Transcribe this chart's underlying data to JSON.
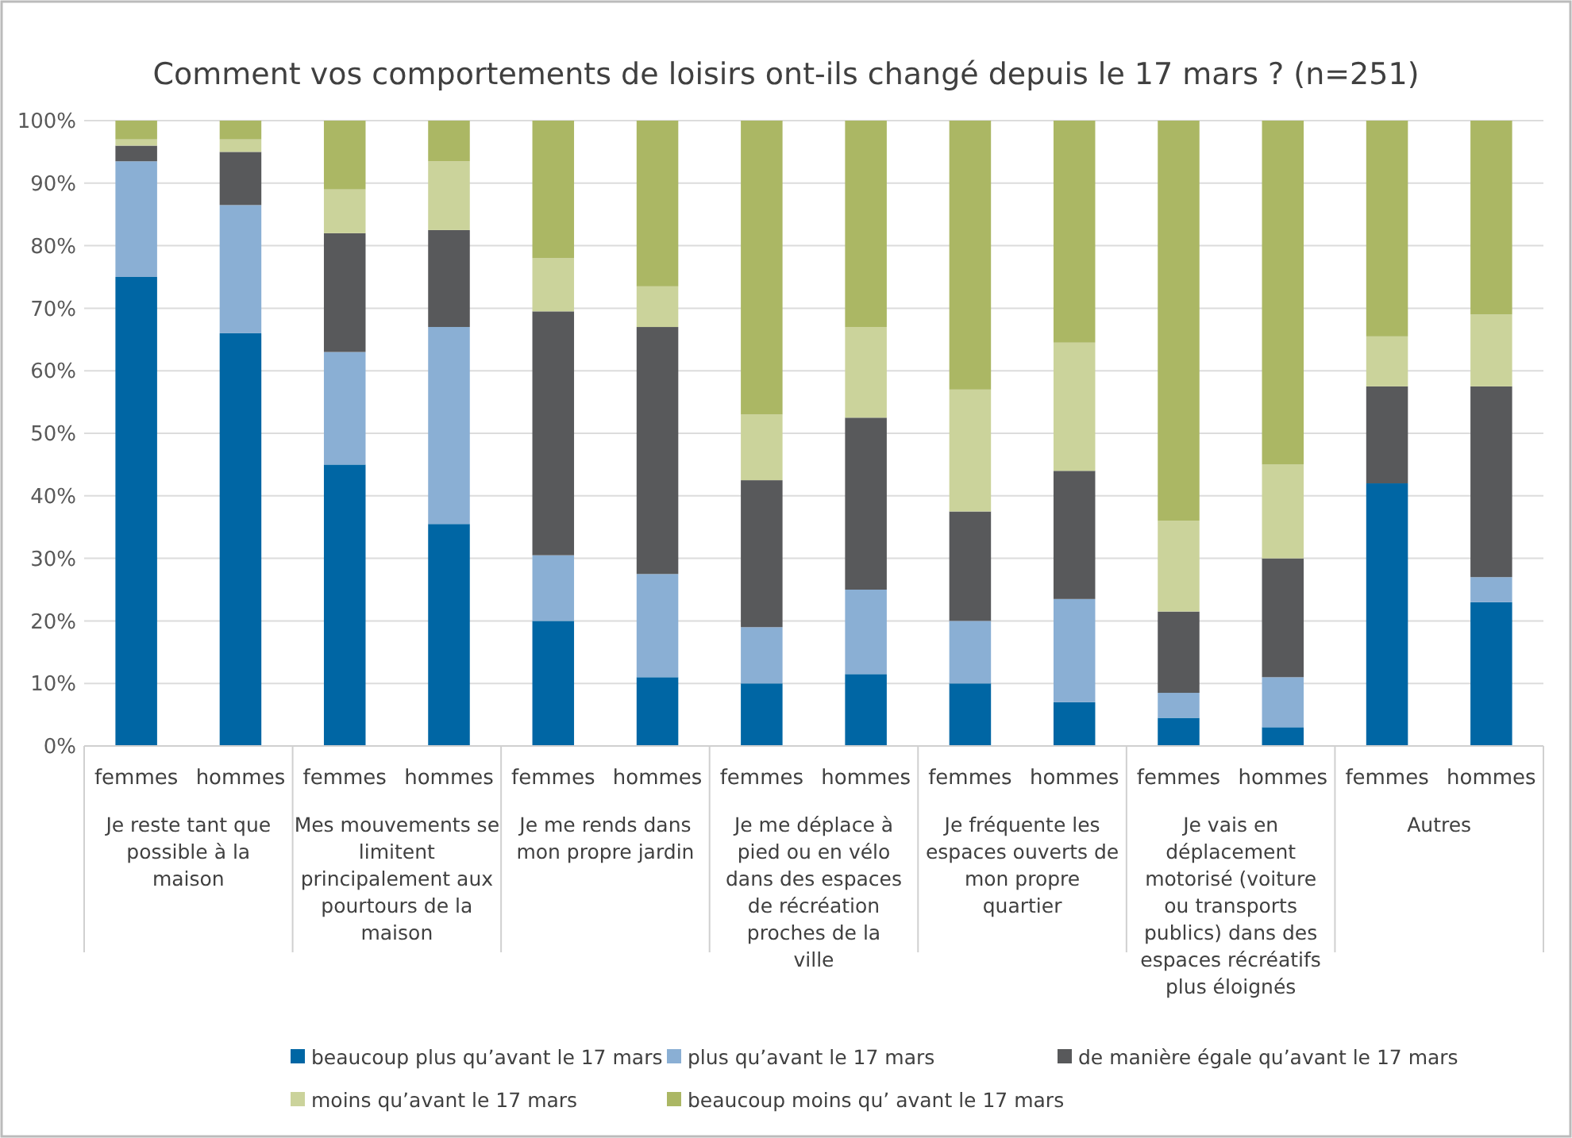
{
  "chart_data": {
    "type": "bar",
    "stacked": true,
    "title": "Comment vos comportements de loisirs ont-ils changé depuis le 17 mars ?  (n=251)",
    "categories": [
      "femmes",
      "hommes",
      "femmes",
      "hommes",
      "femmes",
      "hommes",
      "femmes",
      "hommes",
      "femmes",
      "hommes",
      "femmes",
      "hommes",
      "femmes",
      "hommes"
    ],
    "annotations": [
      "Je reste tant que possible à la maison",
      "Mes mouvements se limitent principalement aux pourtours de la maison",
      "Je me rends dans mon propre jardin",
      "Je me déplace à pied ou en vélo dans des espaces de récréation proches de la ville",
      "Je fréquente les espaces ouverts de mon propre quartier",
      "Je vais en déplacement motorisé (voiture ou transports publics) dans des espaces récréatifs plus éloignés",
      "Autres"
    ],
    "series": [
      {
        "name": "beaucoup plus qu’avant le 17 mars",
        "color": "#0066a4",
        "values": [
          75,
          66,
          45,
          35.5,
          20,
          11,
          10,
          11.5,
          10,
          7,
          4.5,
          3,
          42,
          23
        ]
      },
      {
        "name": "plus qu’avant le 17 mars",
        "color": "#8aafd4",
        "values": [
          18.5,
          20.5,
          18,
          31.5,
          10.5,
          16.5,
          9,
          13.5,
          10,
          16.5,
          4,
          8,
          0,
          4
        ]
      },
      {
        "name": "de manière égale qu’avant le 17 mars",
        "color": "#58595b",
        "values": [
          2.5,
          8.5,
          19,
          15.5,
          39,
          39.5,
          23.5,
          27.5,
          17.5,
          20.5,
          13,
          19,
          15.5,
          30.5
        ]
      },
      {
        "name": "moins qu’avant le 17 mars",
        "color": "#cbd39b",
        "values": [
          1,
          2,
          7,
          11,
          8.5,
          6.5,
          10.5,
          14.5,
          19.5,
          20.5,
          14.5,
          15,
          8,
          11.5
        ]
      },
      {
        "name": "beaucoup moins qu’ avant le 17 mars",
        "color": "#abb764",
        "values": [
          3,
          3,
          11,
          6.5,
          22,
          26.5,
          47,
          33,
          43,
          35.5,
          64,
          55,
          34.5,
          31
        ]
      }
    ],
    "ylim": [
      0,
      100
    ],
    "yticks": [
      {
        "value": 0,
        "label": "0%"
      },
      {
        "value": 10,
        "label": "10%"
      },
      {
        "value": 20,
        "label": "20%"
      },
      {
        "value": 30,
        "label": "30%"
      },
      {
        "value": 40,
        "label": "40%"
      },
      {
        "value": 50,
        "label": "50%"
      },
      {
        "value": 60,
        "label": "60%"
      },
      {
        "value": 70,
        "label": "70%"
      },
      {
        "value": 80,
        "label": "80%"
      },
      {
        "value": 90,
        "label": "90%"
      },
      {
        "value": 100,
        "label": "100%"
      }
    ],
    "grid": "y",
    "legend": "bottom"
  }
}
